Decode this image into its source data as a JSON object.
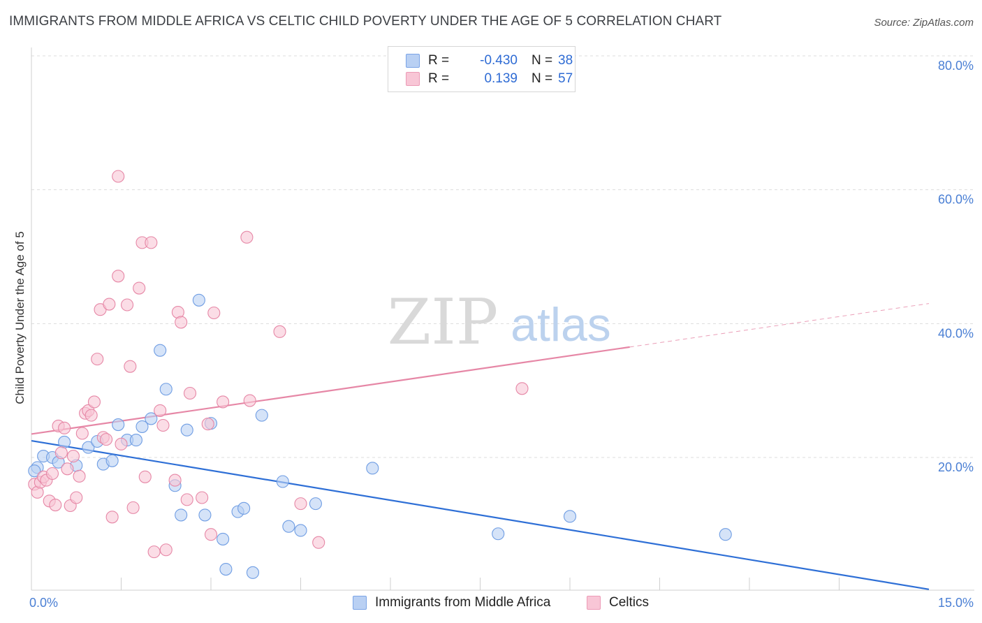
{
  "title": "IMMIGRANTS FROM MIDDLE AFRICA VS CELTIC CHILD POVERTY UNDER THE AGE OF 5 CORRELATION CHART",
  "source": "Source: ZipAtlas.com",
  "watermark": {
    "zip": "ZIP",
    "atlas": "atlas"
  },
  "legend": {
    "r_label": "R =",
    "n_label": "N =",
    "rows": [
      {
        "r": "-0.430",
        "n": "38",
        "swatch_fill": "#b9d0f3",
        "swatch_stroke": "#7aa3e6"
      },
      {
        "r": "0.139",
        "n": "57",
        "swatch_fill": "#f8c6d6",
        "swatch_stroke": "#ec9ab6"
      }
    ]
  },
  "chart_data": {
    "type": "scatter",
    "title": "IMMIGRANTS FROM MIDDLE AFRICA VS CELTIC CHILD POVERTY UNDER THE AGE OF 5 CORRELATION CHART",
    "xlabel": "",
    "ylabel": "Child Poverty Under the Age of 5",
    "xlim": [
      0,
      15
    ],
    "ylim": [
      0,
      82
    ],
    "x_tick_labels": [
      {
        "value": 0,
        "label": "0.0%"
      },
      {
        "value": 15,
        "label": "15.0%"
      }
    ],
    "y_tick_labels": [
      {
        "value": 20,
        "label": "20.0%"
      },
      {
        "value": 40,
        "label": "40.0%"
      },
      {
        "value": 60,
        "label": "60.0%"
      },
      {
        "value": 80,
        "label": "80.0%"
      }
    ],
    "x_minor_ticks": [
      1.5,
      3,
      4.5,
      6,
      7.5,
      9,
      10.5,
      12,
      13.5
    ],
    "grid": true,
    "legend_position": "top-center",
    "series": [
      {
        "name": "Immigrants from Middle Africa",
        "color": "#6f9de3",
        "fill": "#b9d0f3",
        "trend": {
          "x0": 0,
          "y0": 22.5,
          "x1": 15,
          "y1": 0.3,
          "dashed_from": null
        },
        "points": [
          [
            0.1,
            18.5
          ],
          [
            0.2,
            20.2
          ],
          [
            0.35,
            20.0
          ],
          [
            0.45,
            19.3
          ],
          [
            0.55,
            22.3
          ],
          [
            0.75,
            18.8
          ],
          [
            0.95,
            21.5
          ],
          [
            1.1,
            22.4
          ],
          [
            1.2,
            19.0
          ],
          [
            1.35,
            19.5
          ],
          [
            1.45,
            24.9
          ],
          [
            1.6,
            22.6
          ],
          [
            1.75,
            22.6
          ],
          [
            1.85,
            24.6
          ],
          [
            2.0,
            25.8
          ],
          [
            2.15,
            36.0
          ],
          [
            2.25,
            30.2
          ],
          [
            2.4,
            15.8
          ],
          [
            2.5,
            11.4
          ],
          [
            2.6,
            24.1
          ],
          [
            2.8,
            43.5
          ],
          [
            2.9,
            11.4
          ],
          [
            3.0,
            25.1
          ],
          [
            3.2,
            7.8
          ],
          [
            3.25,
            3.3
          ],
          [
            3.45,
            11.9
          ],
          [
            3.55,
            12.4
          ],
          [
            3.7,
            2.8
          ],
          [
            3.85,
            26.3
          ],
          [
            4.2,
            16.4
          ],
          [
            4.3,
            9.7
          ],
          [
            4.5,
            9.1
          ],
          [
            4.75,
            13.1
          ],
          [
            5.7,
            18.4
          ],
          [
            7.8,
            8.6
          ],
          [
            9.0,
            11.2
          ],
          [
            11.6,
            8.5
          ],
          [
            0.05,
            18.0
          ]
        ]
      },
      {
        "name": "Celtics",
        "color": "#e687a6",
        "fill": "#f8c6d6",
        "trend": {
          "x0": 0,
          "y0": 23.5,
          "x1": 15,
          "y1": 43.0,
          "dashed_from": 10.0
        },
        "points": [
          [
            0.05,
            16.0
          ],
          [
            0.1,
            14.8
          ],
          [
            0.15,
            16.3
          ],
          [
            0.2,
            17.1
          ],
          [
            0.25,
            16.6
          ],
          [
            0.3,
            13.5
          ],
          [
            0.35,
            17.6
          ],
          [
            0.4,
            12.9
          ],
          [
            0.45,
            24.7
          ],
          [
            0.5,
            20.7
          ],
          [
            0.55,
            24.4
          ],
          [
            0.6,
            18.3
          ],
          [
            0.65,
            12.8
          ],
          [
            0.7,
            20.2
          ],
          [
            0.75,
            14.0
          ],
          [
            0.8,
            17.2
          ],
          [
            0.85,
            23.6
          ],
          [
            0.9,
            26.6
          ],
          [
            0.95,
            27.0
          ],
          [
            1.0,
            26.3
          ],
          [
            1.05,
            28.3
          ],
          [
            1.1,
            34.7
          ],
          [
            1.15,
            42.1
          ],
          [
            1.2,
            23.0
          ],
          [
            1.25,
            22.7
          ],
          [
            1.3,
            42.9
          ],
          [
            1.35,
            11.1
          ],
          [
            1.45,
            62.0
          ],
          [
            1.45,
            47.1
          ],
          [
            1.5,
            22.0
          ],
          [
            1.6,
            42.8
          ],
          [
            1.65,
            33.6
          ],
          [
            1.7,
            12.5
          ],
          [
            1.8,
            45.3
          ],
          [
            1.85,
            52.1
          ],
          [
            1.9,
            17.1
          ],
          [
            2.0,
            52.1
          ],
          [
            2.05,
            5.9
          ],
          [
            2.15,
            27.0
          ],
          [
            2.2,
            24.8
          ],
          [
            2.25,
            6.2
          ],
          [
            2.4,
            16.6
          ],
          [
            2.45,
            41.7
          ],
          [
            2.5,
            40.2
          ],
          [
            2.6,
            13.7
          ],
          [
            2.65,
            29.6
          ],
          [
            2.85,
            14.0
          ],
          [
            2.95,
            25.0
          ],
          [
            3.0,
            8.5
          ],
          [
            3.05,
            41.6
          ],
          [
            3.2,
            28.3
          ],
          [
            3.6,
            52.9
          ],
          [
            3.65,
            28.5
          ],
          [
            4.15,
            38.8
          ],
          [
            4.5,
            13.1
          ],
          [
            4.8,
            7.3
          ],
          [
            8.2,
            30.3
          ]
        ]
      }
    ]
  },
  "bottom_legend": [
    {
      "label": "Immigrants from Middle Africa"
    },
    {
      "label": "Celtics"
    }
  ]
}
